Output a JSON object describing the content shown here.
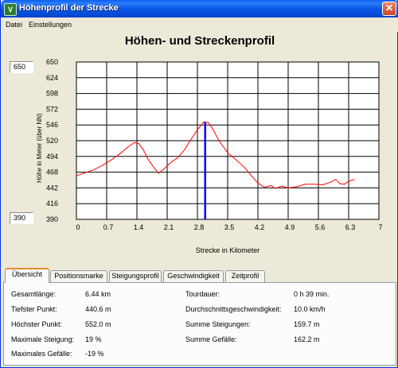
{
  "window": {
    "title": "Höhenprofil der Strecke"
  },
  "menu": {
    "items": [
      {
        "label": "Datei"
      },
      {
        "label": "Einstellungen"
      }
    ]
  },
  "y_fields": {
    "max_value": "650",
    "min_value": "390"
  },
  "chart_data": {
    "type": "line",
    "title": "Höhen- und Streckenprofil",
    "xlabel": "Strecke in Kilometer",
    "ylabel": "Höhe in Meter (über NN)",
    "xlim": [
      0,
      7
    ],
    "ylim": [
      390,
      650
    ],
    "x_ticks": [
      "0",
      "0.7",
      "1.4",
      "2.1",
      "2.8",
      "3.5",
      "4.2",
      "4.9",
      "5.6",
      "6.3",
      "7"
    ],
    "y_ticks": [
      "650",
      "624",
      "598",
      "572",
      "546",
      "520",
      "494",
      "468",
      "442",
      "416",
      "390"
    ],
    "grid": true,
    "line_color": "#ff0000",
    "marker": {
      "x": 2.98,
      "color": "#0000ff"
    },
    "series": [
      {
        "x": [
          0,
          0.2,
          0.4,
          0.6,
          0.8,
          1.0,
          1.2,
          1.35,
          1.45,
          1.55,
          1.65,
          1.8,
          1.9,
          2.0,
          2.1,
          2.2,
          2.35,
          2.5,
          2.65,
          2.8,
          2.95,
          3.05,
          3.15,
          3.3,
          3.5,
          3.7,
          3.9,
          4.05,
          4.2,
          4.35,
          4.5,
          4.6,
          4.75,
          4.9,
          5.1,
          5.3,
          5.5,
          5.7,
          5.9,
          6.0,
          6.1,
          6.2,
          6.3,
          6.44
        ],
        "values": [
          462,
          467,
          472,
          479,
          488,
          498,
          510,
          517,
          515,
          505,
          490,
          475,
          466,
          472,
          478,
          485,
          492,
          505,
          522,
          538,
          551,
          550,
          540,
          520,
          500,
          488,
          475,
          462,
          450,
          443,
          446,
          441,
          445,
          442,
          444,
          448,
          448,
          447,
          452,
          456,
          449,
          448,
          453,
          456
        ]
      }
    ]
  },
  "tabs": [
    {
      "label": "Übersicht"
    },
    {
      "label": "Positionsmarke"
    },
    {
      "label": "Steigungsprofil"
    },
    {
      "label": "Geschwindigkeit"
    },
    {
      "label": "Zeitprofil"
    }
  ],
  "summary": {
    "left": [
      {
        "label": "Gesamtlänge:",
        "value": "6.44 km"
      },
      {
        "label": "Tiefster Punkt:",
        "value": "440.6 m"
      },
      {
        "label": "Höchster Punkt:",
        "value": "552.0 m"
      },
      {
        "label": "Maximale Steigung:",
        "value": "19 %"
      },
      {
        "label": "Maximales Gefälle:",
        "value": "-19 %"
      }
    ],
    "right": [
      {
        "label": "Tourdauer:",
        "value": "0 h 39 min."
      },
      {
        "label": "Durchschnittsgeschwindigkeit:",
        "value": "10.0 km/h"
      },
      {
        "label": "Summe Steigungen:",
        "value": "159.7 m"
      },
      {
        "label": "Summe Gefälle:",
        "value": "162.2 m"
      }
    ]
  }
}
